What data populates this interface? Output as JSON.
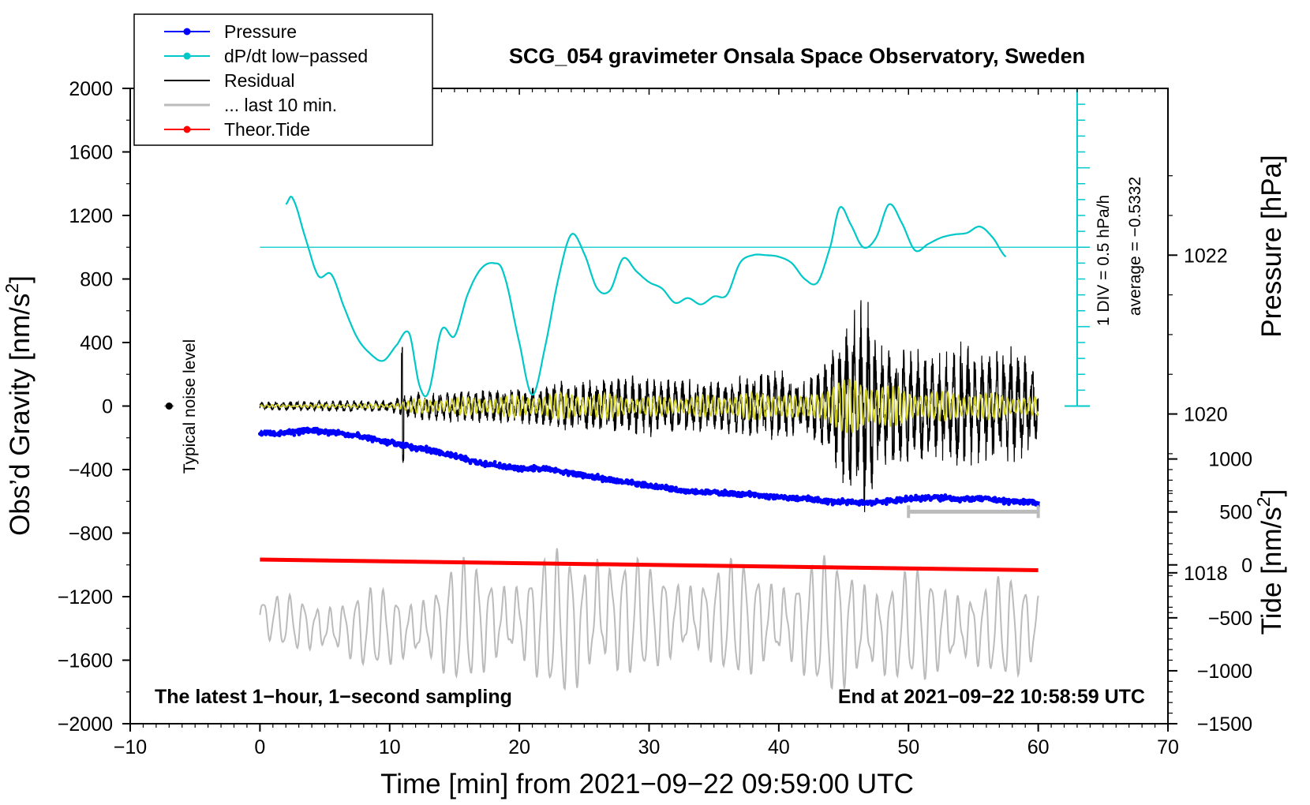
{
  "chart_data": {
    "type": "line",
    "title": "SCG_054 gravimeter Onsala Space Observatory, Sweden",
    "xlabel": "Time [min] from 2021−09−22 09:59:00 UTC",
    "ylabel": "Obs’d Gravity [nm/s",
    "ylabel_sup": "2",
    "ylabel_end": "]",
    "xlim": [
      -10,
      70
    ],
    "ylim": [
      -2000,
      2000
    ],
    "x_ticks": [
      "−10",
      "0",
      "10",
      "20",
      "30",
      "40",
      "50",
      "60",
      "70"
    ],
    "y_ticks": [
      "2000",
      "1600",
      "1200",
      "800",
      "400",
      "0",
      "−400",
      "−800",
      "−1200",
      "−1600",
      "−2000"
    ],
    "pressure_axis": {
      "label": "Pressure [hPa]",
      "ticks": [
        {
          "value": 1022,
          "label": "1022"
        },
        {
          "value": 1020,
          "label": "1020"
        },
        {
          "value": 1018,
          "label": "1018"
        }
      ],
      "range": [
        1016.1,
        1024.1
      ]
    },
    "tide_axis": {
      "label": "Tide [nm/s",
      "label_sup": "2",
      "label_end": "]",
      "ticks": [
        {
          "value": 1000,
          "label": "1000"
        },
        {
          "value": 500,
          "label": "500"
        },
        {
          "value": 0,
          "label": "0"
        },
        {
          "value": -500,
          "label": "−500"
        },
        {
          "value": -1000,
          "label": "−1000"
        },
        {
          "value": -1500,
          "label": "−1500"
        }
      ],
      "range": [
        -1500,
        4500
      ]
    },
    "dpdt_scale": {
      "div_label": "1 DIV = 0.5 hPa/h",
      "average_label": "average = −0.5332",
      "x": 63,
      "y_min": 0,
      "y_max": 2000,
      "zero_line_y": 1000
    },
    "legend": {
      "position": "top-left",
      "entries": [
        {
          "label": "Pressure",
          "color": "#0000ff",
          "marker": true
        },
        {
          "label": "dP/dt low−passed",
          "color": "#00c8c8",
          "marker": true
        },
        {
          "label": "Residual",
          "color": "#000000",
          "marker": false
        },
        {
          "label": "... last 10 min.",
          "color": "#bbbbbb",
          "marker": false
        },
        {
          "label": "Theor.Tide",
          "color": "#ff0000",
          "marker": true
        }
      ]
    },
    "noise_marker": {
      "label": "Typical noise level",
      "x": -7,
      "y": 0
    },
    "last10_bracket": {
      "x": [
        50,
        60
      ],
      "y": -665
    },
    "annotations": {
      "bottom_left": "The latest 1−hour, 1−second sampling",
      "bottom_right": "End at 2021−09−22 10:58:59 UTC"
    },
    "series": [
      {
        "name": "Pressure",
        "axis": "pressure",
        "color": "#0000ff",
        "x": [
          0,
          2,
          4,
          6,
          8,
          10,
          12,
          14,
          16,
          18,
          20,
          22,
          24,
          26,
          28,
          30,
          32,
          34,
          36,
          38,
          40,
          42,
          44,
          46,
          48,
          50,
          52,
          54,
          56,
          58,
          60
        ],
        "y": [
          1019.76,
          1019.76,
          1019.8,
          1019.76,
          1019.71,
          1019.64,
          1019.58,
          1019.51,
          1019.42,
          1019.36,
          1019.31,
          1019.31,
          1019.25,
          1019.2,
          1019.15,
          1019.1,
          1019.05,
          1019.02,
          1019.0,
          1018.98,
          1018.95,
          1018.93,
          1018.9,
          1018.88,
          1018.9,
          1018.93,
          1018.95,
          1018.93,
          1018.93,
          1018.9,
          1018.88
        ]
      },
      {
        "name": "dP/dt low−passed",
        "axis": "gravity",
        "color": "#00c8c8",
        "x": [
          2,
          2.5,
          3.5,
          4.5,
          5.5,
          6.5,
          7.5,
          8.5,
          9.5,
          10.5,
          11.5,
          12.3,
          13,
          14,
          15,
          16,
          17,
          18,
          18.8,
          20,
          21,
          22,
          23,
          24,
          25,
          26,
          27,
          28,
          29,
          30,
          31,
          32,
          33,
          34,
          35,
          36,
          37,
          38,
          39,
          40,
          41,
          42,
          43,
          44,
          44.7,
          45.5,
          46.5,
          47.5,
          48.5,
          49.5,
          50.5,
          51.5,
          52.5,
          53.5,
          54.5,
          55.5,
          56.5,
          57.5
        ],
        "y": [
          1270,
          1310,
          1060,
          820,
          830,
          620,
          430,
          330,
          285,
          380,
          460,
          130,
          90,
          480,
          440,
          700,
          860,
          900,
          830,
          400,
          70,
          380,
          800,
          1080,
          960,
          740,
          730,
          930,
          850,
          780,
          740,
          650,
          680,
          640,
          690,
          700,
          900,
          950,
          950,
          940,
          900,
          800,
          780,
          1010,
          1250,
          1150,
          1000,
          1060,
          1270,
          1150,
          980,
          1020,
          1060,
          1080,
          1090,
          1130,
          1060,
          940
        ]
      },
      {
        "name": "Residual",
        "axis": "gravity",
        "color": "#000000",
        "x": [
          0,
          10,
          12,
          20,
          25,
          30,
          35,
          40,
          42,
          44,
          46,
          47,
          48,
          50,
          52,
          54,
          56,
          58,
          60
        ],
        "amplitude": [
          30,
          40,
          90,
          120,
          180,
          200,
          160,
          240,
          160,
          350,
          720,
          650,
          420,
          380,
          330,
          420,
          350,
          380,
          260
        ]
      },
      {
        "name": "Residual (filtered)",
        "axis": "gravity",
        "color": "#cccc22",
        "x": [
          0,
          10,
          12,
          20,
          25,
          30,
          35,
          40,
          42,
          44,
          46,
          48,
          50,
          55,
          60
        ],
        "amplitude": [
          8,
          15,
          45,
          70,
          90,
          60,
          70,
          95,
          55,
          160,
          180,
          150,
          100,
          90,
          60
        ]
      },
      {
        "name": "... last 10 min.",
        "axis": "gravity",
        "color": "#bbbbbb",
        "x": [
          0,
          5,
          10,
          12,
          15,
          20,
          25,
          26,
          30,
          35,
          40,
          44,
          46,
          48,
          50,
          55,
          60
        ],
        "center": [
          -1330,
          -1400,
          -1400,
          -1410,
          -1360,
          -1350,
          -1370,
          -1300,
          -1340,
          -1330,
          -1360,
          -1380,
          -1390,
          -1420,
          -1380,
          -1400,
          -1390
        ],
        "amplitude": [
          120,
          200,
          240,
          250,
          360,
          330,
          470,
          520,
          290,
          330,
          350,
          390,
          420,
          380,
          320,
          310,
          270
        ]
      },
      {
        "name": "Theor.Tide",
        "axis": "tide",
        "color": "#ff0000",
        "x": [
          0,
          60
        ],
        "y": [
          50,
          -50
        ]
      }
    ]
  }
}
